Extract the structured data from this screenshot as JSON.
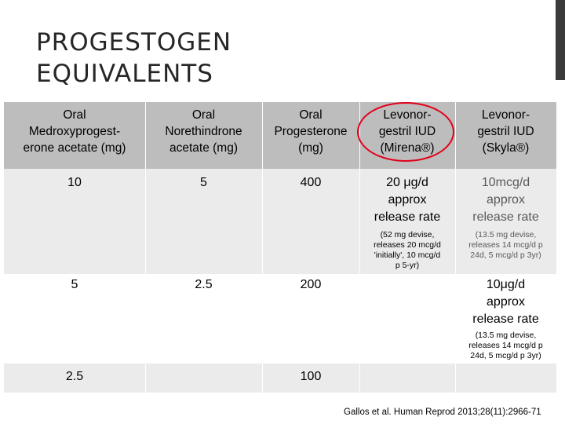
{
  "slide": {
    "title_line1": "PROGESTOGEN",
    "title_line2": "EQUIVALENTS",
    "citation": "Gallos et al. Human Reprod 2013;28(11):2966-71"
  },
  "table": {
    "headers": [
      [
        "Oral",
        "Medroxyprogest-",
        "erone acetate (mg)"
      ],
      [
        "Oral",
        "Norethindrone",
        "acetate (mg)"
      ],
      [
        "Oral",
        "Progesterone",
        "(mg)"
      ],
      [
        "Levonor-",
        "gestril IUD",
        "(Mirena®)"
      ],
      [
        "Levonor-",
        "gestril IUD",
        "(Skyla®)"
      ]
    ],
    "rows": [
      {
        "mpa": "10",
        "neta": "5",
        "progesterone": "400",
        "mirena": {
          "rate": [
            "20 μg/d",
            "approx",
            "release rate"
          ],
          "note": [
            "(52 mg devise,",
            "releases 20 mcg/d",
            "'initially', 10 mcg/d",
            "p 5-yr)"
          ]
        },
        "skyla": {
          "rate": [
            "10mcg/d",
            "approx",
            "release rate"
          ],
          "note": [
            "(13.5 mg devise,",
            "releases 14 mcg/d p",
            "24d, 5 mcg/d p 3yr)"
          ]
        }
      },
      {
        "mpa": "5",
        "neta": "2.5",
        "progesterone": "200",
        "skyla": {
          "rate": [
            "10μg/d",
            "approx",
            "release rate"
          ],
          "note": [
            "(13.5 mg devise,",
            "releases 14 mcg/d p",
            "24d, 5 mcg/d p 3yr)"
          ]
        }
      },
      {
        "mpa": "2.5",
        "progesterone": "100"
      }
    ]
  },
  "colors": {
    "header_band": "#bdbdbd",
    "row_band": "#ebebeb",
    "highlight_circle": "#e3001a",
    "title_text": "#262626"
  }
}
